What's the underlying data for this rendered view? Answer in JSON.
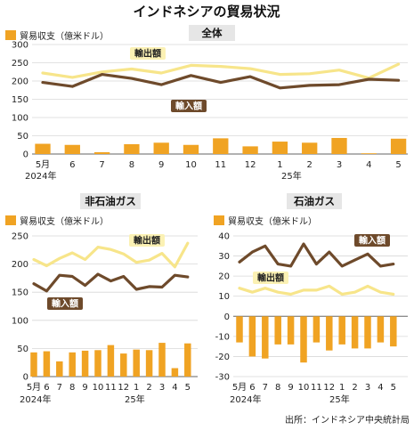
{
  "title": "インドネシアの貿易状況",
  "source": "出所：インドネシア中央統計局",
  "colors": {
    "exports": "#f7e58a",
    "imports": "#6e4a2b",
    "balance": "#f0a323",
    "grid": "#d8d8d8",
    "panel_title_bg": "#e6e6e6"
  },
  "chart_data": [
    {
      "type": "bar+line",
      "title": "全体",
      "legend_label": "貿易収支（億米ドル）",
      "categories": [
        "5",
        "6",
        "7",
        "8",
        "9",
        "10",
        "11",
        "12",
        "1",
        "2",
        "3",
        "4",
        "5"
      ],
      "year_labels": [
        "2024年",
        "25年"
      ],
      "ylim": [
        0,
        300
      ],
      "yticks": [
        0,
        50,
        100,
        150,
        200,
        250,
        300
      ],
      "series": [
        {
          "name": "輸出額",
          "type": "line",
          "values": [
            222,
            210,
            225,
            233,
            222,
            243,
            240,
            234,
            218,
            220,
            230,
            208,
            246
          ]
        },
        {
          "name": "輸入額",
          "type": "line",
          "values": [
            196,
            185,
            218,
            207,
            190,
            215,
            196,
            212,
            181,
            188,
            190,
            205,
            202
          ]
        },
        {
          "name": "貿易収支",
          "type": "bar",
          "values": [
            28,
            25,
            5,
            27,
            31,
            25,
            43,
            21,
            34,
            31,
            44,
            2,
            42
          ]
        }
      ]
    },
    {
      "type": "bar+line",
      "title": "非石油ガス",
      "legend_label": "貿易収支（億米ドル）",
      "categories": [
        "5",
        "6",
        "7",
        "8",
        "9",
        "10",
        "11",
        "12",
        "1",
        "2",
        "3",
        "4",
        "5"
      ],
      "year_labels": [
        "2024年",
        "25年"
      ],
      "ylim": [
        0,
        250
      ],
      "yticks": [
        0,
        50,
        100,
        150,
        200,
        250
      ],
      "series": [
        {
          "name": "輸出額",
          "type": "line",
          "values": [
            208,
            197,
            210,
            220,
            208,
            230,
            226,
            218,
            203,
            207,
            219,
            195,
            237
          ]
        },
        {
          "name": "輸入額",
          "type": "line",
          "values": [
            165,
            152,
            180,
            178,
            162,
            182,
            170,
            178,
            155,
            160,
            159,
            180,
            177
          ]
        },
        {
          "name": "貿易収支",
          "type": "bar",
          "values": [
            43,
            45,
            27,
            43,
            46,
            47,
            56,
            41,
            48,
            47,
            60,
            15,
            59
          ]
        }
      ]
    },
    {
      "type": "bar+line",
      "title": "石油ガス",
      "legend_label": "貿易収支（億米ドル）",
      "categories": [
        "5",
        "6",
        "7",
        "8",
        "9",
        "10",
        "11",
        "12",
        "1",
        "2",
        "3",
        "4",
        "5"
      ],
      "year_labels": [
        "2024年",
        "25年"
      ],
      "ylim": [
        -30,
        40
      ],
      "yticks": [
        -30,
        -20,
        -10,
        0,
        10,
        20,
        30,
        40
      ],
      "series": [
        {
          "name": "輸出額",
          "type": "line",
          "values": [
            14,
            12,
            14,
            12,
            11,
            13,
            13,
            15,
            11,
            12,
            15,
            12,
            11
          ]
        },
        {
          "name": "輸入額",
          "type": "line",
          "values": [
            27,
            32,
            35,
            26,
            25,
            36,
            26,
            32,
            25,
            28,
            31,
            25,
            26
          ]
        },
        {
          "name": "貿易収支",
          "type": "bar",
          "values": [
            -13,
            -20,
            -21,
            -14,
            -14,
            -23,
            -13,
            -17,
            -14,
            -16,
            -16,
            -13,
            -15
          ]
        }
      ]
    }
  ]
}
